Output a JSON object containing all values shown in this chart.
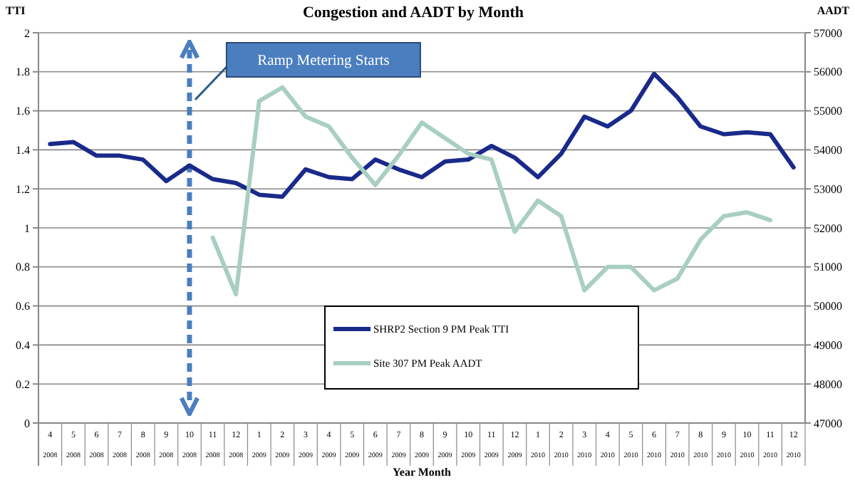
{
  "chart_data": {
    "type": "line",
    "title": "Congestion and AADT by Month",
    "xlabel": "Year Month",
    "ylabel": "TTI",
    "y2label": "AADT",
    "categories": [
      "4 2008",
      "5 2008",
      "6 2008",
      "7 2008",
      "8 2008",
      "9 2008",
      "10 2008",
      "11 2008",
      "12 2008",
      "1 2009",
      "2 2009",
      "3 2009",
      "4 2009",
      "5 2009",
      "6 2009",
      "7 2009",
      "8 2009",
      "9 2009",
      "10 2009",
      "11 2009",
      "12 2009",
      "1 2010",
      "2 2010",
      "3 2010",
      "4 2010",
      "5 2010",
      "6 2010",
      "7 2010",
      "8 2010",
      "9 2010",
      "10 2010",
      "11 2010",
      "12 2010"
    ],
    "series": [
      {
        "name": "SHRP2 Section 9 PM Peak TTI",
        "color": "#1a2a8a",
        "values": [
          1.43,
          1.44,
          1.37,
          1.37,
          1.35,
          1.24,
          1.32,
          1.25,
          1.23,
          1.17,
          1.16,
          1.3,
          1.26,
          1.25,
          1.35,
          1.3,
          1.26,
          1.34,
          1.35,
          1.42,
          1.36,
          1.26,
          1.38,
          1.57,
          1.52,
          1.6,
          1.79,
          1.67,
          1.52,
          1.48,
          1.49,
          1.48,
          1.31
        ]
      },
      {
        "name": "Site 307 PM Peak AADT",
        "color": "#a8cfc0",
        "axis": "y2",
        "values": [
          null,
          null,
          null,
          null,
          null,
          null,
          null,
          51750,
          50300,
          55250,
          55600,
          54850,
          54600,
          53800,
          53100,
          53850,
          54700,
          54300,
          53900,
          53750,
          51900,
          52700,
          52300,
          50400,
          51000,
          51000,
          50400,
          50700,
          51700,
          52300,
          52400,
          52200,
          null
        ]
      }
    ],
    "ylim": [
      0,
      2
    ],
    "yticks": [
      0,
      0.2,
      0.4,
      0.6,
      0.8,
      1,
      1.2,
      1.4,
      1.6,
      1.8,
      2
    ],
    "y2lim": [
      47000,
      57000
    ],
    "y2ticks": [
      47000,
      48000,
      49000,
      50000,
      51000,
      52000,
      53000,
      54000,
      55000,
      56000,
      57000
    ],
    "grid": "y",
    "legend": "bottom right",
    "marker": "none",
    "line_style": "solid",
    "ref_lines": [
      {
        "axis": "x",
        "value": "10 2008",
        "color": "#4a7ebf",
        "line_style": "dashed"
      }
    ],
    "annotations": [
      "Ramp Metering Starts"
    ]
  }
}
